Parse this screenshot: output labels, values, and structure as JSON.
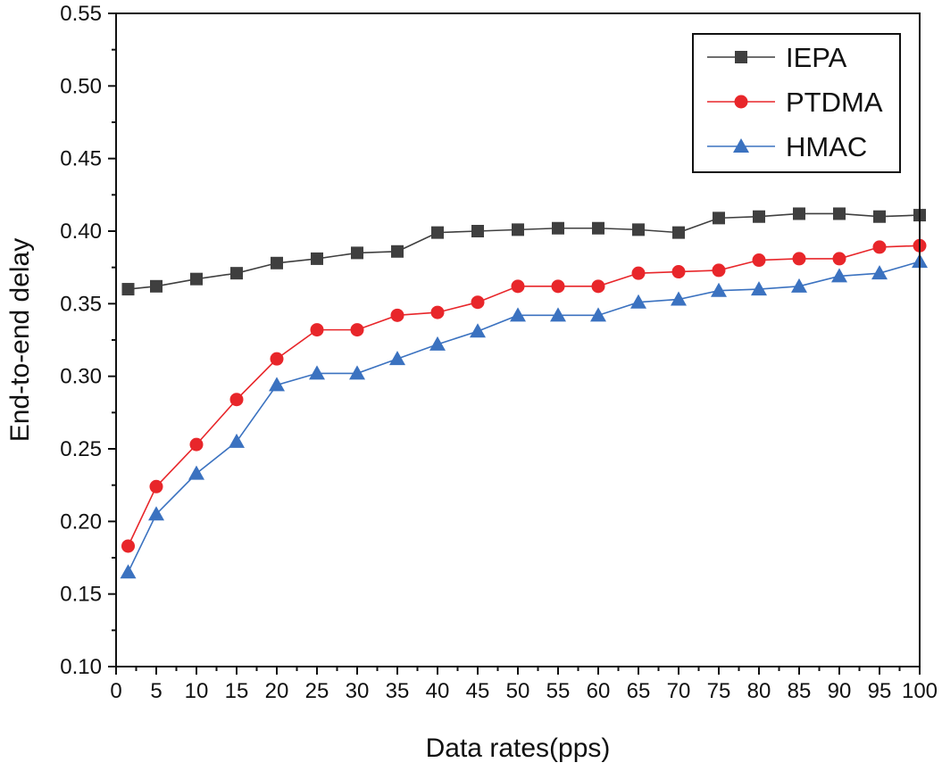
{
  "chart_data": {
    "type": "line",
    "title": "",
    "xlabel": "Data rates(pps)",
    "ylabel": "End-to-end delay",
    "xlim": [
      0,
      100
    ],
    "ylim": [
      0.1,
      0.55
    ],
    "x_ticks": [
      0,
      5,
      10,
      15,
      20,
      25,
      30,
      35,
      40,
      45,
      50,
      55,
      60,
      65,
      70,
      75,
      80,
      85,
      90,
      95,
      100
    ],
    "y_ticks": [
      "0.10",
      "0.15",
      "0.20",
      "0.25",
      "0.30",
      "0.35",
      "0.40",
      "0.45",
      "0.50",
      "0.55"
    ],
    "grid": false,
    "legend_position": "top-right",
    "x": [
      1.5,
      5,
      10,
      15,
      20,
      25,
      30,
      35,
      40,
      45,
      50,
      55,
      60,
      65,
      70,
      75,
      80,
      85,
      90,
      95,
      100
    ],
    "series": [
      {
        "name": "IEPA",
        "color": "#3f3f3f",
        "marker": "square",
        "values": [
          0.36,
          0.362,
          0.367,
          0.371,
          0.378,
          0.381,
          0.385,
          0.386,
          0.399,
          0.4,
          0.401,
          0.402,
          0.402,
          0.401,
          0.399,
          0.409,
          0.41,
          0.412,
          0.412,
          0.41,
          0.411
        ]
      },
      {
        "name": "PTDMA",
        "color": "#e8262a",
        "marker": "circle",
        "values": [
          0.183,
          0.224,
          0.253,
          0.284,
          0.312,
          0.332,
          0.332,
          0.342,
          0.344,
          0.351,
          0.362,
          0.362,
          0.362,
          0.371,
          0.372,
          0.373,
          0.38,
          0.381,
          0.381,
          0.389,
          0.39
        ]
      },
      {
        "name": "HMAC",
        "color": "#3b72c0",
        "marker": "triangle",
        "values": [
          0.165,
          0.205,
          0.233,
          0.255,
          0.294,
          0.302,
          0.302,
          0.312,
          0.322,
          0.331,
          0.342,
          0.342,
          0.342,
          0.351,
          0.353,
          0.359,
          0.36,
          0.362,
          0.369,
          0.371,
          0.379
        ]
      }
    ]
  }
}
